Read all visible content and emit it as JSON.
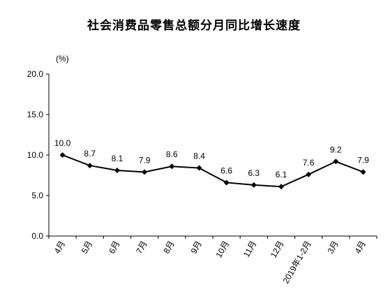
{
  "chart_data": {
    "type": "line",
    "title": "社会消费品零售总额分月同比增长速度",
    "ylabel": "(%)",
    "xlabel": "",
    "ylim": [
      0,
      20
    ],
    "yticks": [
      "0.0",
      "5.0",
      "10.0",
      "15.0",
      "20.0"
    ],
    "grid": false,
    "legend": "none",
    "categories": [
      "4月",
      "5月",
      "6月",
      "7月",
      "8月",
      "9月",
      "10月",
      "11月",
      "12月",
      "2019年1-2月",
      "3月",
      "4月"
    ],
    "series": [
      {
        "values": [
          10.0,
          8.7,
          8.1,
          7.9,
          8.6,
          8.4,
          6.6,
          6.3,
          6.1,
          7.6,
          9.2,
          7.9
        ],
        "labels": [
          "10.0",
          "8.7",
          "8.1",
          "7.9",
          "8.6",
          "8.4",
          "6.6",
          "6.3",
          "6.1",
          "7.6",
          "9.2",
          "7.9"
        ],
        "color": "#000000"
      }
    ]
  }
}
